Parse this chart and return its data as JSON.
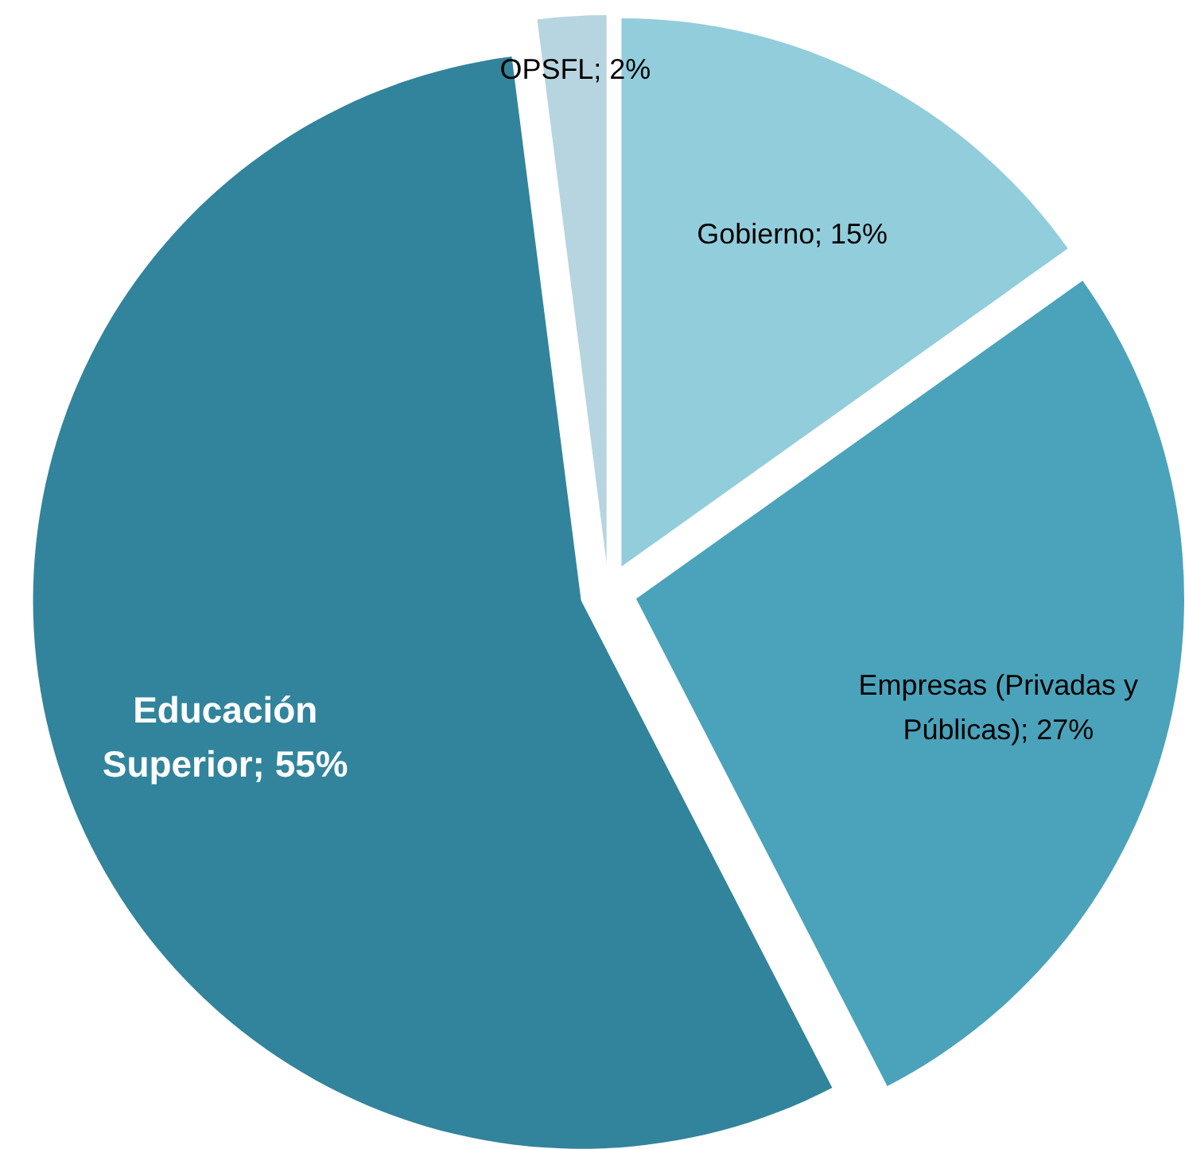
{
  "chart_data": {
    "type": "pie",
    "categories": [
      "Gobierno",
      "Empresas (Privadas y Públicas)",
      "Educación Superior",
      "OPSFL"
    ],
    "values": [
      15,
      27,
      55,
      2
    ],
    "value_labels": [
      "15%",
      "27%",
      "55%",
      "2%"
    ],
    "colors": [
      "#92cddc",
      "#4aa3ba",
      "#31849b",
      "#b7d5e0"
    ]
  }
}
